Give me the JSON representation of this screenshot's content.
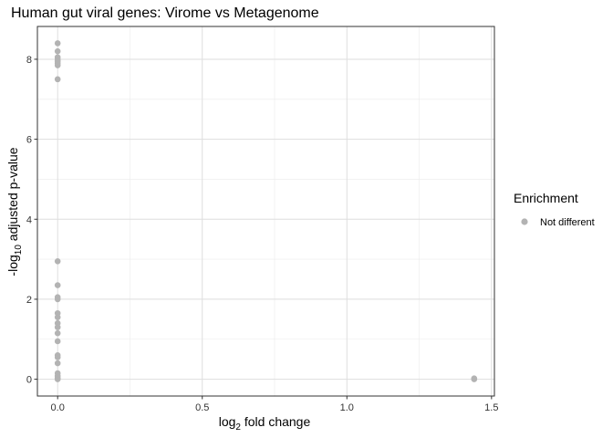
{
  "chart_data": {
    "type": "scatter",
    "title": "Human gut viral genes: Virome vs Metagenome",
    "xlabel": {
      "prefix": "log",
      "sub": "2",
      "suffix": " fold change"
    },
    "ylabel": {
      "prefix": "-log",
      "sub": "10",
      "suffix": " adjusted p-value"
    },
    "xlim": [
      -0.07,
      1.51
    ],
    "ylim": [
      -0.42,
      8.82
    ],
    "x_major_ticks": [
      0.0,
      0.5,
      1.0,
      1.5
    ],
    "x_tick_labels": [
      "0.0",
      "0.5",
      "1.0",
      "1.5"
    ],
    "x_minor_ticks": [
      0.25,
      0.75,
      1.25
    ],
    "y_major_ticks": [
      0,
      2,
      4,
      6,
      8
    ],
    "y_tick_labels": [
      "0",
      "2",
      "4",
      "6",
      "8"
    ],
    "y_minor_ticks": [
      1,
      3,
      5,
      7
    ],
    "grid": true,
    "legend": {
      "title": "Enrichment",
      "placement": "right",
      "entries": [
        {
          "label": "Not different",
          "color": "#b3b3b3"
        }
      ]
    },
    "series": [
      {
        "name": "Not different",
        "color": "#b3b3b3",
        "points": [
          [
            0,
            8.4
          ],
          [
            0,
            8.2
          ],
          [
            0,
            8.05
          ],
          [
            0,
            8.0
          ],
          [
            0,
            7.95
          ],
          [
            0,
            7.9
          ],
          [
            0,
            7.85
          ],
          [
            0,
            7.5
          ],
          [
            0,
            2.95
          ],
          [
            0,
            2.35
          ],
          [
            0,
            2.05
          ],
          [
            0,
            2.0
          ],
          [
            0,
            1.65
          ],
          [
            0,
            1.55
          ],
          [
            0,
            1.4
          ],
          [
            0,
            1.3
          ],
          [
            0,
            1.15
          ],
          [
            0,
            0.95
          ],
          [
            0,
            0.6
          ],
          [
            0,
            0.55
          ],
          [
            0,
            0.4
          ],
          [
            0,
            0.15
          ],
          [
            0,
            0.08
          ],
          [
            0,
            0.03
          ],
          [
            0,
            0.0
          ],
          [
            1.44,
            0.02
          ],
          [
            1.44,
            0.0
          ]
        ]
      }
    ]
  }
}
